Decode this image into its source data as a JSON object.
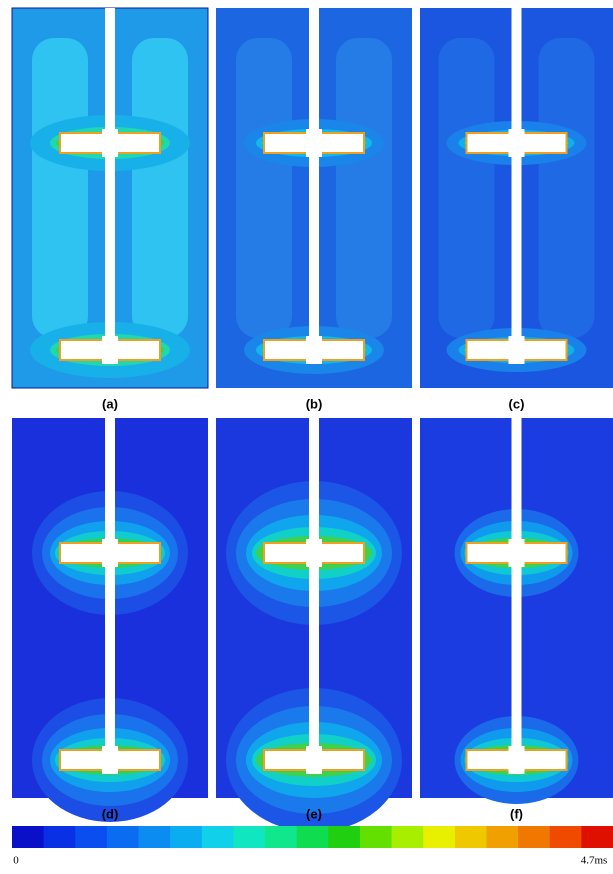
{
  "panels": [
    {
      "label": "(a)"
    },
    {
      "label": "(b)"
    },
    {
      "label": "(c)"
    },
    {
      "label": "(d)"
    },
    {
      "label": "(e)"
    },
    {
      "label": "(f)"
    }
  ],
  "colorbar": {
    "min_label": "0",
    "max_label": "4.7ms",
    "colors": [
      "#0a10c8",
      "#0a30e6",
      "#0a4ef0",
      "#0a6cf0",
      "#0a8cf0",
      "#0aaef0",
      "#10d0ea",
      "#10e6c0",
      "#10e68c",
      "#10dc50",
      "#20d010",
      "#64e000",
      "#a8ee00",
      "#e8f000",
      "#f0c800",
      "#f0a000",
      "#f07800",
      "#f04a00",
      "#e01000"
    ]
  }
}
